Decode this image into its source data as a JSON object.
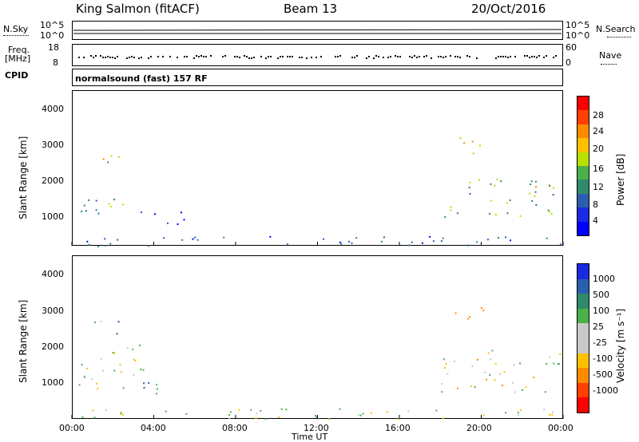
{
  "header": {
    "station": "King Salmon (fitACF)",
    "beam": "Beam 13",
    "date": "20/Oct/2016"
  },
  "top_panels": {
    "nsky_label": "N.Sky",
    "nsearch_label": "N.Search",
    "nsky_ticks": [
      "10^5",
      "10^0"
    ],
    "nsearch_ticks": [
      "10^5",
      "10^0"
    ],
    "freq_label_line1": "Freq.",
    "freq_label_line2": "[MHz]",
    "freq_ticks": [
      "18",
      "8"
    ],
    "nave_label": "Nave",
    "nave_ticks": [
      "60",
      "0"
    ],
    "cpid_label": "CPID",
    "cpid_text": "normalsound (fast) 157 RF"
  },
  "x_axis": {
    "label": "Time UT",
    "ticks": [
      "00:00",
      "04:00",
      "08:00",
      "12:00",
      "16:00",
      "20:00",
      "00:00"
    ]
  },
  "power_panel": {
    "ylabel": "Slant Range [km]",
    "yticks": [
      "4000",
      "3000",
      "2000",
      "1000"
    ],
    "cbar_label": "Power [dB]",
    "cbar_ticks": [
      "28",
      "24",
      "20",
      "16",
      "12",
      "8",
      "4"
    ],
    "cbar_colors": [
      "#ff0000",
      "#ff4000",
      "#ff8a00",
      "#ffc000",
      "#b8e000",
      "#4ab04a",
      "#2e8b6e",
      "#2a5fb0",
      "#1a2ae0",
      "#0000ff"
    ]
  },
  "velocity_panel": {
    "ylabel": "Slant Range [km]",
    "yticks": [
      "4000",
      "3000",
      "2000",
      "1000"
    ],
    "cbar_label": "Velocity [m s⁻¹]",
    "cbar_ticks": [
      "1000",
      "500",
      "100",
      "25",
      "-25",
      "-100",
      "-500",
      "-1000"
    ],
    "cbar_colors": [
      "#1a2ae0",
      "#2a5fb0",
      "#2e8b6e",
      "#4ab04a",
      "#c8c8c8",
      "#c8c8c8",
      "#ffc000",
      "#ff8a00",
      "#ff4000",
      "#ff0000"
    ]
  },
  "chart_data": [
    {
      "type": "heatmap",
      "title": "Power",
      "xlabel": "Time UT",
      "ylabel": "Slant Range [km]",
      "xlim": [
        0,
        24
      ],
      "ylim": [
        200,
        4600
      ],
      "colorbar": {
        "label": "Power [dB]",
        "ticks": [
          4,
          8,
          12,
          16,
          20,
          24,
          28
        ]
      },
      "regions": [
        {
          "t": [
            0.3,
            2.6
          ],
          "range": [
            1000,
            1700
          ],
          "value": 12
        },
        {
          "t": [
            1.0,
            2.4
          ],
          "range": [
            2500,
            3000
          ],
          "value": 14
        },
        {
          "t": [
            3.0,
            5.6
          ],
          "range": [
            800,
            1200
          ],
          "value": 6
        },
        {
          "t": [
            18.0,
            24.0
          ],
          "range": [
            900,
            2100
          ],
          "value": 14
        },
        {
          "t": [
            18.6,
            20.2
          ],
          "range": [
            2700,
            3300
          ],
          "value": 18
        },
        {
          "t": [
            0.0,
            24.0
          ],
          "range": [
            200,
            500
          ],
          "value": 8
        }
      ]
    },
    {
      "type": "heatmap",
      "title": "Velocity",
      "xlabel": "Time UT",
      "ylabel": "Slant Range [km]",
      "xlim": [
        0,
        24
      ],
      "ylim": [
        200,
        4600
      ],
      "colorbar": {
        "label": "Velocity [m s⁻¹]",
        "ticks": [
          1000,
          500,
          100,
          25,
          -25,
          -100,
          -500,
          -1000
        ]
      },
      "regions": [
        {
          "t": [
            0.3,
            3.5
          ],
          "range": [
            1000,
            2200
          ],
          "value": 0
        },
        {
          "t": [
            1.0,
            2.4
          ],
          "range": [
            2500,
            3000
          ],
          "value": 100
        },
        {
          "t": [
            3.0,
            5.0
          ],
          "range": [
            700,
            1200
          ],
          "value": 100
        },
        {
          "t": [
            18.0,
            24.0
          ],
          "range": [
            900,
            2100
          ],
          "value": -25
        },
        {
          "t": [
            18.6,
            20.2
          ],
          "range": [
            2700,
            3300
          ],
          "value": -300
        },
        {
          "t": [
            0.0,
            24.0
          ],
          "range": [
            200,
            500
          ],
          "value": 0
        }
      ]
    }
  ]
}
